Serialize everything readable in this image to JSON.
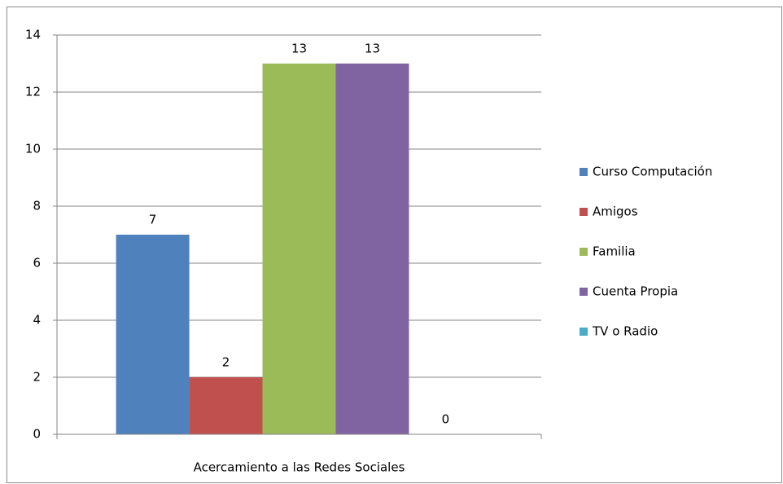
{
  "chart_data": {
    "type": "bar",
    "categories": [
      "Acercamiento a las Redes Sociales"
    ],
    "series": [
      {
        "name": "Curso Computación",
        "color": "#4f81bd",
        "values": [
          7
        ]
      },
      {
        "name": "Amigos",
        "color": "#c0504d",
        "values": [
          2
        ]
      },
      {
        "name": "Familia",
        "color": "#9bbb59",
        "values": [
          13
        ]
      },
      {
        "name": "Cuenta Propia",
        "color": "#8064a2",
        "values": [
          13
        ]
      },
      {
        "name": "TV o Radio",
        "color": "#4bacc6",
        "values": [
          0
        ]
      }
    ],
    "ylim": [
      0,
      14
    ],
    "yticks": [
      0,
      2,
      4,
      6,
      8,
      10,
      12,
      14
    ],
    "grid": true,
    "legend": "right",
    "data_labels": true
  }
}
